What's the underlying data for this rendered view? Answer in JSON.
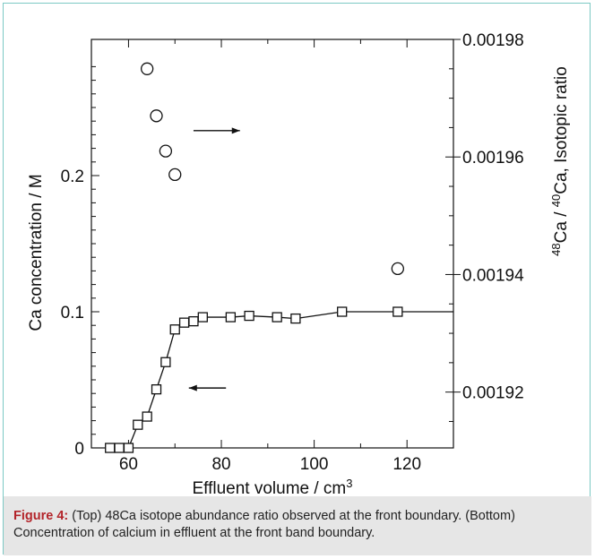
{
  "chart_data": {
    "type": "scatter",
    "xlabel": "Effluent volume / cm³",
    "ylabel_left": "Ca concentration / M",
    "ylabel_right_parts": [
      "48",
      "Ca / ",
      "40",
      "Ca, Isotopic ratio"
    ],
    "xlim": [
      52,
      130
    ],
    "x_ticks": [
      60,
      80,
      100,
      120
    ],
    "ylim_left": [
      0,
      0.3
    ],
    "y_ticks_left": [
      0,
      0.1,
      0.2
    ],
    "ylim_right": [
      0.0019105,
      0.00198
    ],
    "y_ticks_right": [
      0.00192,
      0.00194,
      0.00196,
      0.00198
    ],
    "series": [
      {
        "marker": "circle",
        "axis": "right",
        "points": [
          [
            64,
            0.001975
          ],
          [
            66,
            0.001967
          ],
          [
            68,
            0.001961
          ],
          [
            70,
            0.001957
          ],
          [
            118,
            0.001941
          ]
        ]
      },
      {
        "marker": "square",
        "axis": "left",
        "connected": true,
        "points": [
          [
            56,
            0.0
          ],
          [
            58,
            0.0
          ],
          [
            60,
            0.0
          ],
          [
            62,
            0.017
          ],
          [
            64,
            0.023
          ],
          [
            66,
            0.043
          ],
          [
            68,
            0.063
          ],
          [
            70,
            0.087
          ],
          [
            72,
            0.092
          ],
          [
            74,
            0.093
          ],
          [
            76,
            0.096
          ],
          [
            82,
            0.096
          ],
          [
            86,
            0.097
          ],
          [
            92,
            0.096
          ],
          [
            96,
            0.095
          ],
          [
            106,
            0.1
          ],
          [
            118,
            0.1
          ]
        ]
      }
    ],
    "annotations": [
      {
        "type": "arrow",
        "direction": "right",
        "x": [
          74,
          84
        ],
        "y": 0.233,
        "axis": "left"
      },
      {
        "type": "arrow",
        "direction": "left",
        "x": [
          73,
          81
        ],
        "y": 0.044,
        "axis": "left"
      }
    ],
    "grid": false
  },
  "caption": {
    "label": "Figure 4:",
    "text": " (Top) 48Ca isotope abundance ratio observed at the front boundary. (Bottom) Concentration of calcium in effluent at the front band boundary."
  }
}
